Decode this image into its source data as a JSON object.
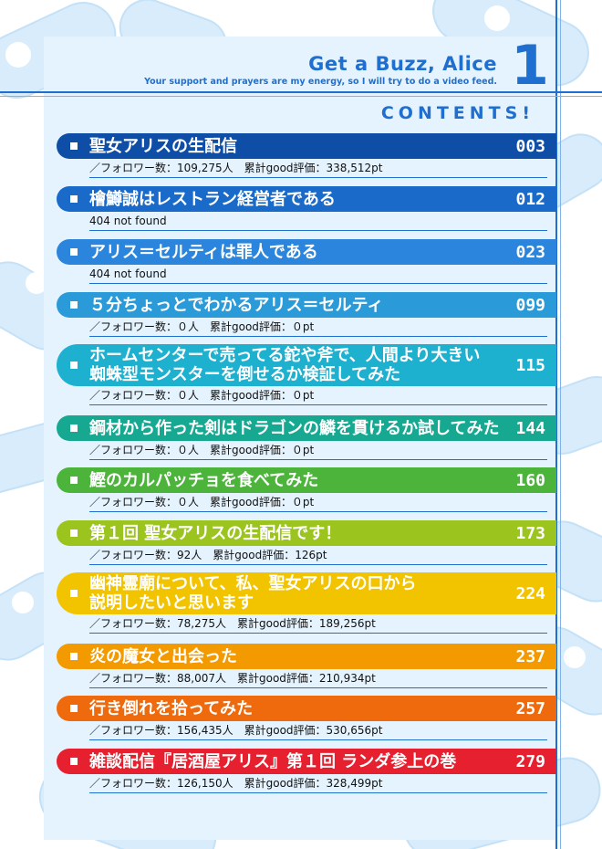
{
  "header": {
    "title": "Get a Buzz, Alice",
    "subtitle": "Your support and prayers are my energy, so I will try to do a video feed.",
    "volume": "1"
  },
  "contents_label": "CONTENTS!",
  "colors": {
    "primary": "#1f6fd0",
    "panel": "#e4f3fd"
  },
  "entries": [
    {
      "title": "聖女アリスの生配信",
      "page": "003",
      "stats": "／フォロワー数：109,275人　累計good評価：338,512pt",
      "color": "#0e4ea7"
    },
    {
      "title": "檜鱒誠はレストラン経営者である",
      "page": "012",
      "stats": "404 not found",
      "color": "#1a6bc9"
    },
    {
      "title": "アリス＝セルティは罪人である",
      "page": "023",
      "stats": "404 not found",
      "color": "#2b85dd"
    },
    {
      "title": "５分ちょっとでわかるアリス＝セルティ",
      "page": "099",
      "stats": "／フォロワー数：０人　累計good評価：０pt",
      "color": "#2a9bd8"
    },
    {
      "title": "ホームセンターで売ってる鉈や斧で、人間より大きい\n蜘蛛型モンスターを倒せるか検証してみた",
      "page": "115",
      "stats": "／フォロワー数：０人　累計good評価：０pt",
      "color": "#1eb0cf"
    },
    {
      "title": "鋼材から作った剣はドラゴンの鱗を貫けるか試してみた",
      "page": "144",
      "stats": "／フォロワー数：０人　累計good評価：０pt",
      "color": "#16a891"
    },
    {
      "title": "鰹のカルパッチョを食べてみた",
      "page": "160",
      "stats": "／フォロワー数：０人　累計good評価：０pt",
      "color": "#4cb43a"
    },
    {
      "title": "第１回 聖女アリスの生配信です！",
      "page": "173",
      "stats": "／フォロワー数：92人　累計good評価：126pt",
      "color": "#9cc41f"
    },
    {
      "title": "幽神霊廟について、私、聖女アリスの口から\n説明したいと思います",
      "page": "224",
      "stats": "／フォロワー数：78,275人　累計good評価：189,256pt",
      "color": "#f2c400"
    },
    {
      "title": "炎の魔女と出会った",
      "page": "237",
      "stats": "／フォロワー数：88,007人　累計good評価：210,934pt",
      "color": "#f29a00"
    },
    {
      "title": "行き倒れを拾ってみた",
      "page": "257",
      "stats": "／フォロワー数：156,435人　累計good評価：530,656pt",
      "color": "#ee6a0c"
    },
    {
      "title": "雑談配信『居酒屋アリス』第１回 ランダ参上の巻",
      "page": "279",
      "stats": "／フォロワー数：126,150人　累計good評価：328,499pt",
      "color": "#e6202e"
    }
  ]
}
